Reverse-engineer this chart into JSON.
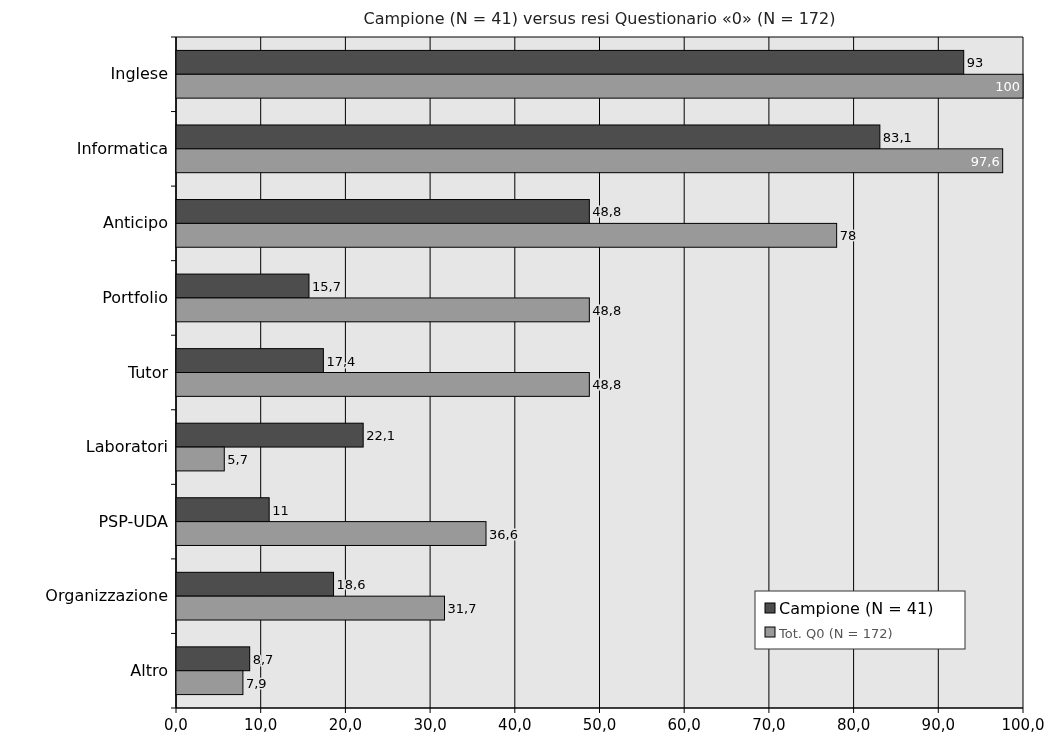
{
  "chart_data": {
    "type": "bar",
    "orientation": "horizontal",
    "title": "Campione (N = 41) versus resi Questionario «0» (N = 172)",
    "categories": [
      "Inglese",
      "Informatica",
      "Anticipo",
      "Portfolio",
      "Tutor",
      "Laboratori",
      "PSP-UDA",
      "Organizzazione",
      "Altro"
    ],
    "series": [
      {
        "name": "Campione (N = 41)",
        "color": "#4d4d4d",
        "values": [
          93,
          83.1,
          48.8,
          15.7,
          17.4,
          22.1,
          11,
          18.6,
          8.7
        ],
        "value_labels": [
          "93",
          "83,1",
          "48,8",
          "15,7",
          "17,4",
          "22,1",
          "11",
          "18,6",
          "8,7"
        ]
      },
      {
        "name": "Tot. Q0  (N = 172)",
        "color": "#999999",
        "values": [
          100,
          97.6,
          78,
          48.8,
          48.8,
          5.7,
          36.6,
          31.7,
          7.9
        ],
        "value_labels": [
          "100",
          "97,6",
          "78",
          "48,8",
          "48,8",
          "5,7",
          "36,6",
          "31,7",
          "7,9"
        ]
      }
    ],
    "xlim": [
      0,
      100
    ],
    "xticks": [
      {
        "value": 0,
        "label": "0,0"
      },
      {
        "value": 10,
        "label": "10,0"
      },
      {
        "value": 20,
        "label": "20,0"
      },
      {
        "value": 30,
        "label": "30,0"
      },
      {
        "value": 40,
        "label": "40,0"
      },
      {
        "value": 50,
        "label": "50,0"
      },
      {
        "value": 60,
        "label": "60,0"
      },
      {
        "value": 70,
        "label": "70,0"
      },
      {
        "value": 80,
        "label": "80,0"
      },
      {
        "value": 90,
        "label": "90,0"
      },
      {
        "value": 100,
        "label": "100,0"
      }
    ],
    "grid": "x",
    "legend": "bottom right"
  }
}
